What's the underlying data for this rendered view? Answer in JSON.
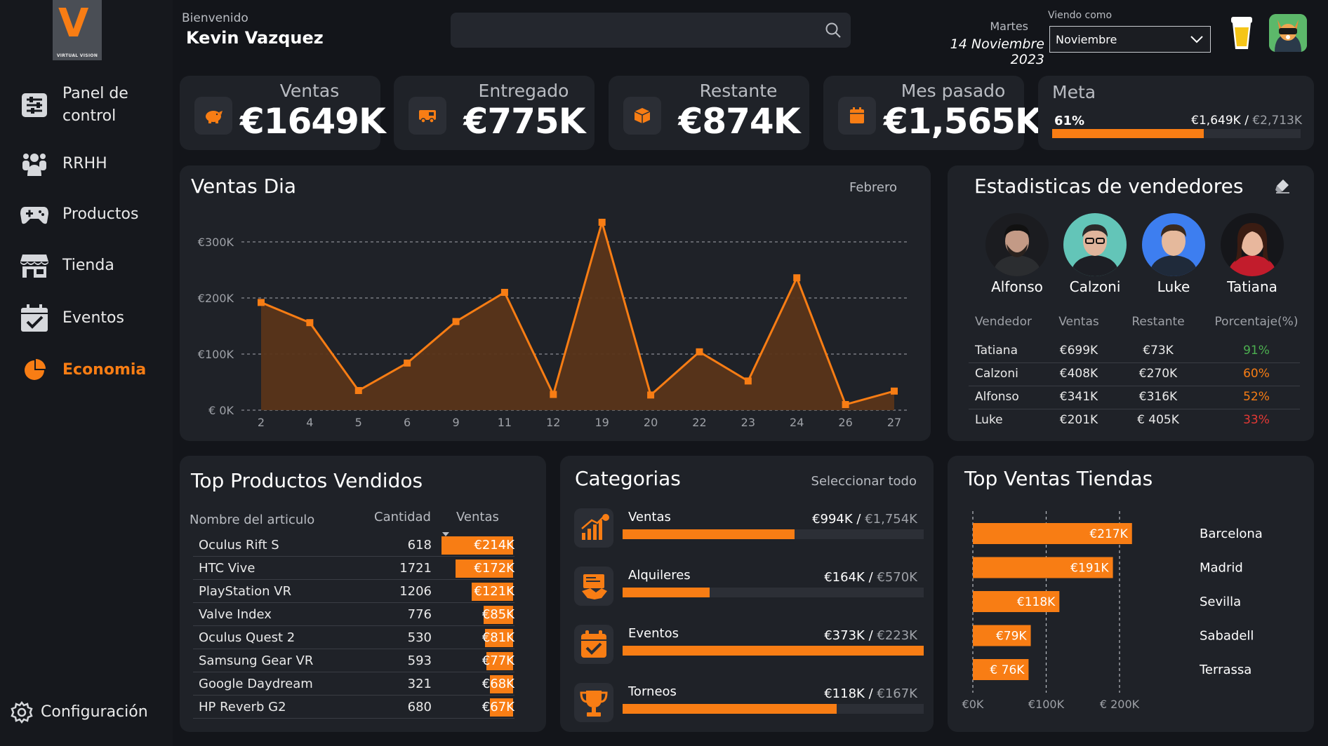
{
  "app": {
    "logo_text": "VIRTUAL VISION",
    "logo_letter": "V"
  },
  "sidebar": {
    "items": [
      {
        "label": "Panel de control",
        "icon": "sliders-icon"
      },
      {
        "label": "RRHH",
        "icon": "people-icon"
      },
      {
        "label": "Productos",
        "icon": "gamepad-icon"
      },
      {
        "label": "Tienda",
        "icon": "store-icon"
      },
      {
        "label": "Eventos",
        "icon": "calendar-check-icon"
      },
      {
        "label": "Economia",
        "icon": "pie-chart-icon"
      }
    ],
    "active": "Economia",
    "settings_label": "Configuración"
  },
  "header": {
    "welcome": "Bienvenido",
    "user": "Kevin Vazquez",
    "search_placeholder": "",
    "date_day": "Martes",
    "date_full": "14 Noviembre 2023",
    "viewing_label": "Viendo como",
    "viewing_value": "Noviembre"
  },
  "kpis": [
    {
      "label": "Ventas",
      "value": "€1649K",
      "icon": "piggy-bank-icon"
    },
    {
      "label": "Entregado",
      "value": "€775K",
      "icon": "truck-icon"
    },
    {
      "label": "Restante",
      "value": "€874K",
      "icon": "box-icon"
    },
    {
      "label": "Mes pasado",
      "value": "€1,565K",
      "icon": "calendar-icon"
    }
  ],
  "goal": {
    "label": "Meta",
    "percent_text": "61%",
    "percent": 0.61,
    "current": "€1,649K",
    "separator": "/",
    "target": "€2,713K"
  },
  "colors": {
    "accent": "#f87d14",
    "background": "#13151a",
    "card": "#1f2228",
    "green": "#4caf50",
    "red": "#e53935"
  },
  "ventas_dia": {
    "title": "Ventas Dia",
    "period": "Febrero"
  },
  "chart_data": {
    "type": "area",
    "title": "Ventas Dia",
    "categories": [
      "2",
      "4",
      "5",
      "6",
      "9",
      "11",
      "12",
      "19",
      "20",
      "22",
      "23",
      "24",
      "26",
      "27"
    ],
    "values": [
      192,
      156,
      35,
      84,
      158,
      210,
      28,
      335,
      27,
      104,
      52,
      236,
      10,
      34
    ],
    "ylim": [
      0,
      300
    ],
    "yticks": [
      0,
      100,
      200,
      300
    ],
    "ytick_labels": [
      "€   0K",
      "€100K",
      "€200K",
      "€300K"
    ],
    "xlabel": "",
    "ylabel": "",
    "grid": true
  },
  "sellers": {
    "title": "Estadisticas de vendedores",
    "people": [
      {
        "name": "Alfonso",
        "bg": "#1b1c20",
        "hair": "#111111",
        "skin": "#c39a86",
        "shirt": "#2b2d30"
      },
      {
        "name": "Calzoni",
        "bg": "#63c5b8",
        "hair": "#2b2b2b",
        "skin": "#e0b59c",
        "shirt": "#1d1f25"
      },
      {
        "name": "Luke",
        "bg": "#3d7ef0",
        "hair": "#3a2a1f",
        "skin": "#e5b99c",
        "shirt": "#1f2a3a"
      },
      {
        "name": "Tatiana",
        "bg": "#15161a",
        "hair": "#3a1c12",
        "skin": "#e8b79d",
        "shirt": "#c21c2c"
      }
    ],
    "columns": [
      "Vendedor",
      "Ventas",
      "Restante",
      "Porcentaje(%)"
    ],
    "rows": [
      {
        "name": "Tatiana",
        "ventas": "€699K",
        "restante": "€73K",
        "pct": "91%",
        "color": "#4caf50"
      },
      {
        "name": "Calzoni",
        "ventas": "€408K",
        "restante": "€270K",
        "pct": "60%",
        "color": "#f87d14"
      },
      {
        "name": "Alfonso",
        "ventas": "€341K",
        "restante": "€316K",
        "pct": "52%",
        "color": "#f87d14"
      },
      {
        "name": "Luke",
        "ventas": "€201K",
        "restante": "€ 405K",
        "pct": "33%",
        "color": "#e53935"
      }
    ]
  },
  "products": {
    "title": "Top Productos Vendidos",
    "columns": [
      "Nombre del articulo",
      "Cantidad",
      "Ventas"
    ],
    "rows": [
      {
        "name": "Oculus Rift S",
        "qty": "618",
        "ventas": "€214K",
        "value": 214
      },
      {
        "name": "HTC Vive",
        "qty": "1721",
        "ventas": "€172K",
        "value": 172
      },
      {
        "name": "PlayStation VR",
        "qty": "1206",
        "ventas": "€121K",
        "value": 121
      },
      {
        "name": "Valve Index",
        "qty": "776",
        "ventas": "€85K",
        "value": 85
      },
      {
        "name": "Oculus Quest 2",
        "qty": "530",
        "ventas": "€81K",
        "value": 81
      },
      {
        "name": "Samsung Gear VR",
        "qty": "593",
        "ventas": "€77K",
        "value": 77
      },
      {
        "name": "Google Daydream",
        "qty": "321",
        "ventas": "€68K",
        "value": 68
      },
      {
        "name": "HP Reverb G2",
        "qty": "680",
        "ventas": "€67K",
        "value": 67
      }
    ]
  },
  "categories": {
    "title": "Categorias",
    "select_all": "Seleccionar todo",
    "items": [
      {
        "label": "Ventas",
        "current": "€994K",
        "sep": "/",
        "total": "€1,754K",
        "ratio": 0.57,
        "icon": "growth-chart-icon"
      },
      {
        "label": "Alquileres",
        "current": "€164K",
        "sep": "/",
        "total": "€570K",
        "ratio": 0.29,
        "icon": "handshake-icon"
      },
      {
        "label": "Eventos",
        "current": "€373K",
        "sep": "/",
        "total": "€223K",
        "ratio": 1.0,
        "icon": "event-calendar-icon"
      },
      {
        "label": "Torneos",
        "current": "€118K",
        "sep": "/",
        "total": "€167K",
        "ratio": 0.71,
        "icon": "trophy-icon"
      }
    ]
  },
  "stores": {
    "title": "Top Ventas Tiendas",
    "rows": [
      {
        "name": "Barcelona",
        "label": "€217K",
        "value": 217
      },
      {
        "name": "Madrid",
        "label": "€191K",
        "value": 191
      },
      {
        "name": "Sevilla",
        "label": "€118K",
        "value": 118
      },
      {
        "name": "Sabadell",
        "label": "€79K",
        "value": 79
      },
      {
        "name": "Terrassa",
        "label": "€ 76K",
        "value": 76
      }
    ],
    "axis": [
      "€0K",
      "€100K",
      "€  200K"
    ],
    "axis_values": [
      0,
      100,
      200
    ]
  }
}
